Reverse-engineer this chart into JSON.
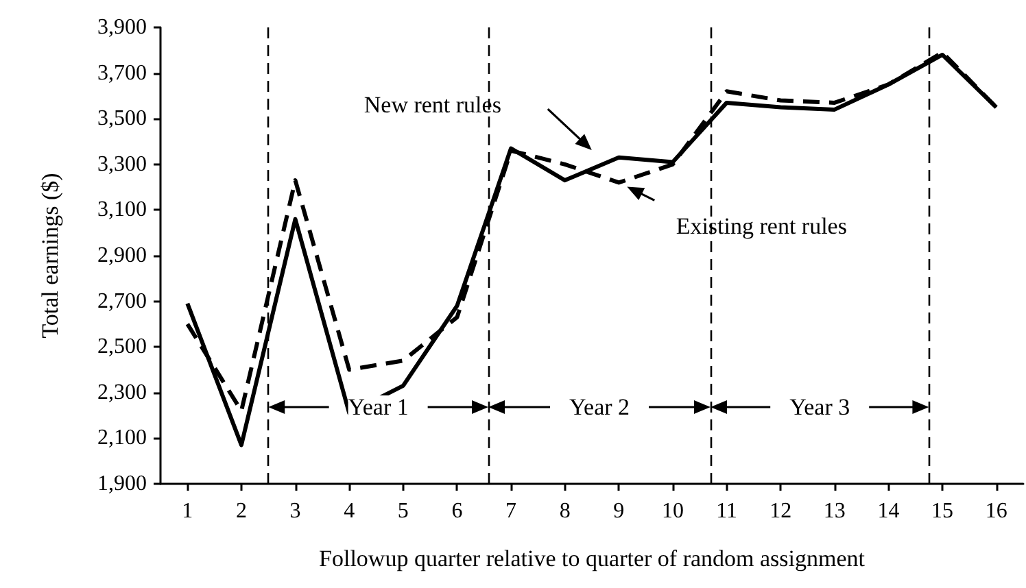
{
  "chart_data": {
    "type": "line",
    "xlabel": "Followup quarter relative to quarter of random assignment",
    "ylabel": "Total earnings ($)",
    "x": [
      1,
      2,
      3,
      4,
      5,
      6,
      7,
      8,
      9,
      10,
      11,
      12,
      13,
      14,
      15,
      16
    ],
    "series": [
      {
        "name": "New rent rules",
        "color": "#000000",
        "line_style": "solid",
        "values": [
          2690,
          2070,
          3060,
          2210,
          2330,
          2680,
          3370,
          3230,
          3330,
          3310,
          3570,
          3550,
          3540,
          3650,
          3780,
          3550
        ]
      },
      {
        "name": "Existing rent rules",
        "color": "#000000",
        "line_style": "dashed",
        "values": [
          2600,
          2220,
          3230,
          2400,
          2440,
          2630,
          3360,
          3300,
          3220,
          3300,
          3620,
          3580,
          3570,
          3650,
          3790,
          3550
        ]
      }
    ],
    "xlim": [
      0.5,
      16.5
    ],
    "xticks": [
      1,
      2,
      3,
      4,
      5,
      6,
      7,
      8,
      9,
      10,
      11,
      12,
      13,
      14,
      15,
      16
    ],
    "ylim": [
      1900,
      3900
    ],
    "yticks": [
      {
        "value": 1900,
        "label": "1,900"
      },
      {
        "value": 2100,
        "label": "2,100"
      },
      {
        "value": 2300,
        "label": "2,300"
      },
      {
        "value": 2500,
        "label": "2,500"
      },
      {
        "value": 2700,
        "label": "2,700"
      },
      {
        "value": 2900,
        "label": "2,900"
      },
      {
        "value": 3100,
        "label": "3,100"
      },
      {
        "value": 3300,
        "label": "3,300"
      },
      {
        "value": 3500,
        "label": "3,500"
      },
      {
        "value": 3700,
        "label": "3,700"
      },
      {
        "value": 3900,
        "label": "3,900"
      }
    ],
    "ref_lines": [
      {
        "axis": "x",
        "value": 2.5,
        "line_style": "dashed",
        "color": "#000000"
      },
      {
        "axis": "x",
        "value": 6.58,
        "line_style": "dashed",
        "color": "#000000"
      },
      {
        "axis": "x",
        "value": 10.7,
        "line_style": "dashed",
        "color": "#000000"
      },
      {
        "axis": "x",
        "value": 14.75,
        "line_style": "dashed",
        "color": "#000000"
      }
    ],
    "annotations": [
      "Year 1",
      "Year 2",
      "Year 3"
    ],
    "grid": false,
    "legend": false,
    "marker": "none"
  }
}
